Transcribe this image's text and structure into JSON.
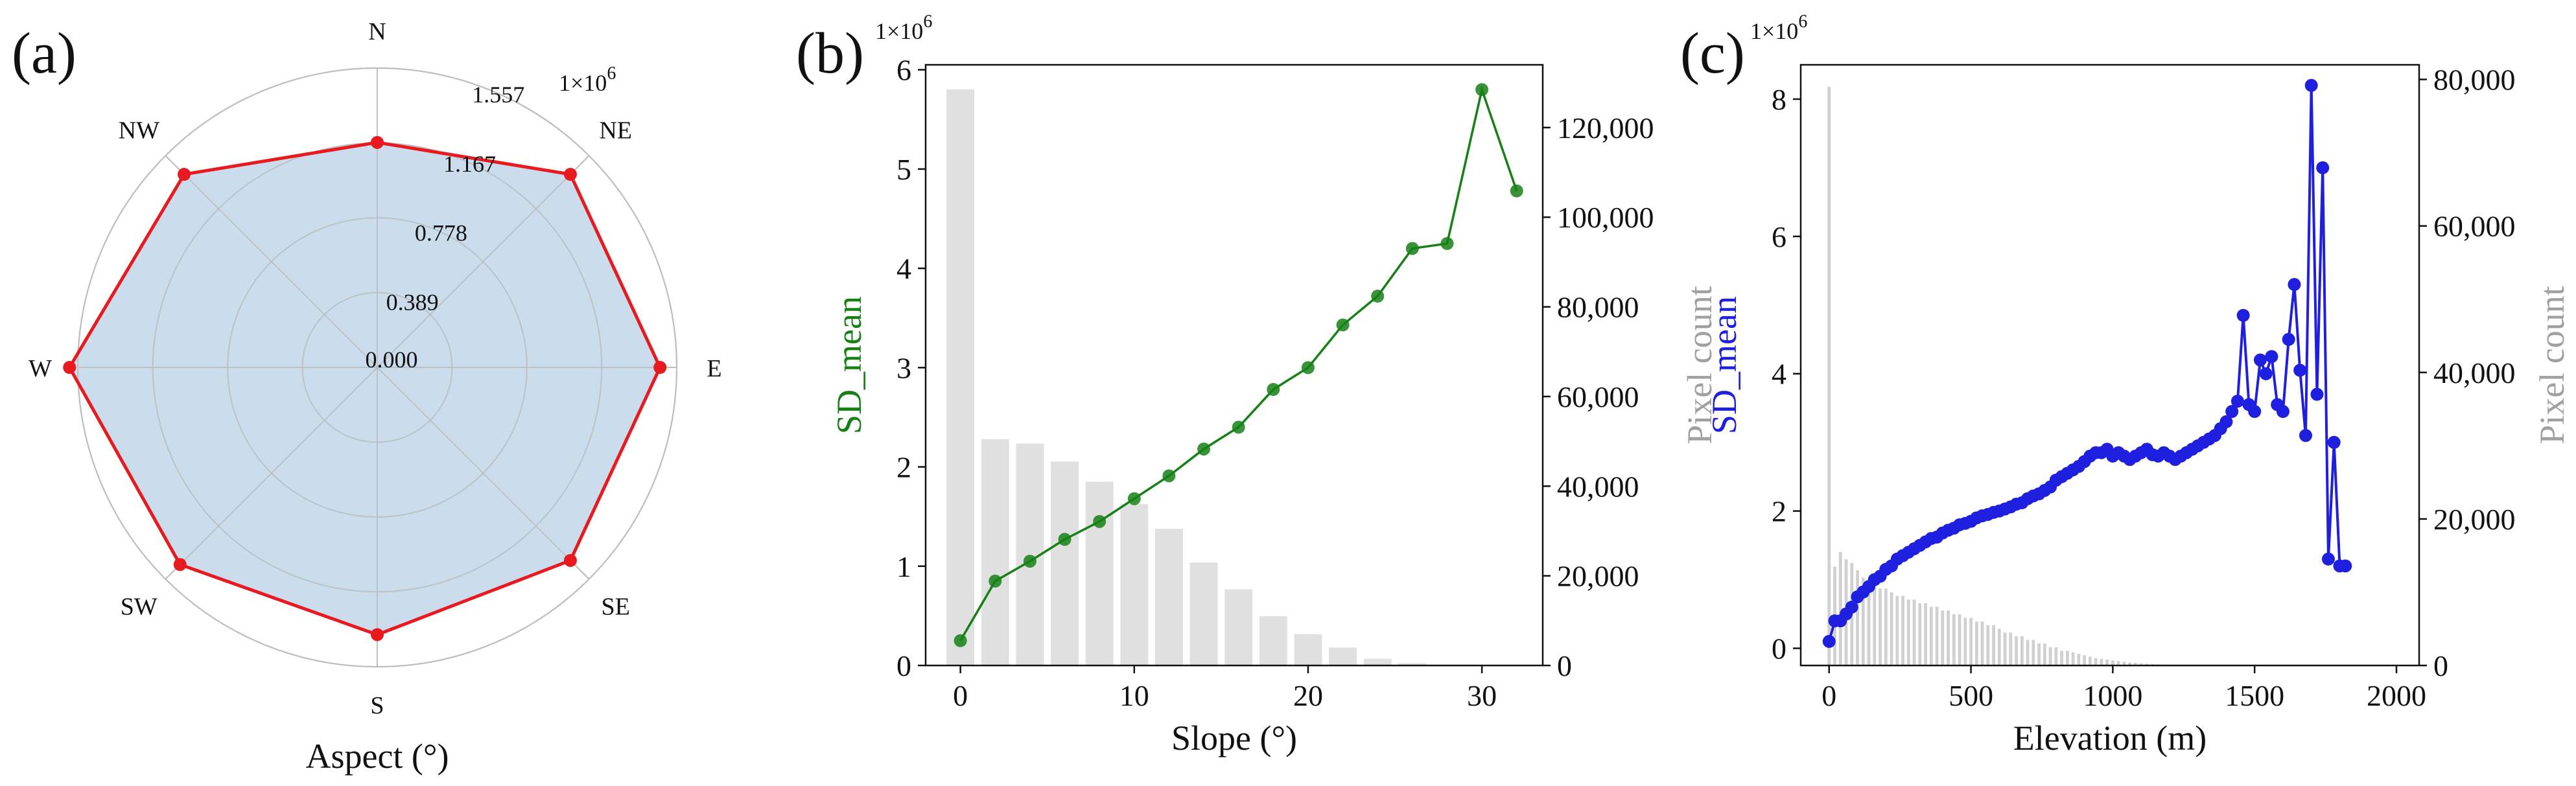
{
  "panels": {
    "a_label": "(a)",
    "b_label": "(b)",
    "c_label": "(c)"
  },
  "chart_data": [
    {
      "type": "radar",
      "panel": "(a)",
      "xlabel": "Aspect (°)",
      "offset_label": "1×10^6",
      "categories": [
        "N",
        "NE",
        "E",
        "SE",
        "S",
        "SW",
        "W",
        "NW"
      ],
      "radial_ticks": [
        "0.000",
        "0.389",
        "0.778",
        "1.167",
        "1.557"
      ],
      "rlim": [
        0,
        1.557
      ],
      "values": [
        1.17,
        1.42,
        1.47,
        1.42,
        1.39,
        1.45,
        1.6,
        1.42
      ],
      "line_color": "#e8191f",
      "fill_color": "#c5d9ea",
      "grid": true
    },
    {
      "type": "bar+line",
      "panel": "(b)",
      "xlabel": "Slope (°)",
      "ylabel": "SD_mean",
      "y2label": "Pixel count",
      "offset_label": "1×10^6",
      "xlim": [
        -2,
        33.5
      ],
      "ylim": [
        0,
        6.05
      ],
      "y2lim": [
        0,
        134000
      ],
      "xticks": [
        0,
        10,
        20,
        30
      ],
      "yticks": [
        0,
        1,
        2,
        3,
        4,
        5,
        6
      ],
      "y2ticks": [
        "0",
        "20,000",
        "40,000",
        "60,000",
        "80,000",
        "100,000",
        "120,000"
      ],
      "y2tick_values": [
        0,
        20000,
        40000,
        60000,
        80000,
        100000,
        120000
      ],
      "line": {
        "name": "SD_mean",
        "color": "#168016",
        "x": [
          0,
          2,
          4,
          6,
          8,
          10,
          12,
          14,
          16,
          18,
          20,
          22,
          24,
          26,
          28,
          30,
          32
        ],
        "y": [
          0.25,
          0.85,
          1.05,
          1.27,
          1.45,
          1.68,
          1.91,
          2.18,
          2.4,
          2.78,
          3.0,
          3.43,
          3.72,
          4.2,
          4.25,
          5.8,
          4.78
        ]
      },
      "bars": {
        "name": "Pixel count",
        "color": "#e0e0e0",
        "x": [
          0,
          2,
          4,
          6,
          8,
          10,
          12,
          14,
          16,
          18,
          20,
          22,
          24,
          26,
          28
        ],
        "values": [
          128500,
          50500,
          49500,
          45500,
          41000,
          36000,
          30500,
          23000,
          17000,
          11000,
          7000,
          4000,
          1500,
          500,
          100
        ]
      },
      "axis_color": "#168016",
      "y2_color": "#a0a0a0"
    },
    {
      "type": "bar+line",
      "panel": "(c)",
      "xlabel": "Elevation (m)",
      "ylabel": "SD_mean",
      "y2label": "Pixel count",
      "offset_label": "1×10^6",
      "xlim": [
        -100,
        2080
      ],
      "ylim": [
        -0.25,
        8.5
      ],
      "y2lim": [
        0,
        82000
      ],
      "xticks": [
        0,
        500,
        1000,
        1500,
        2000
      ],
      "yticks": [
        0,
        2,
        4,
        6,
        8
      ],
      "y2ticks": [
        "0",
        "20,000",
        "40,000",
        "60,000",
        "80,000"
      ],
      "y2tick_values": [
        0,
        20000,
        40000,
        60000,
        80000
      ],
      "line": {
        "name": "SD_mean",
        "color": "#1f1fe0",
        "x": [
          0,
          20,
          40,
          60,
          80,
          100,
          120,
          140,
          160,
          180,
          200,
          220,
          240,
          260,
          280,
          300,
          320,
          340,
          360,
          380,
          400,
          420,
          440,
          460,
          480,
          500,
          520,
          540,
          560,
          580,
          600,
          620,
          640,
          660,
          680,
          700,
          720,
          740,
          760,
          780,
          800,
          820,
          840,
          860,
          880,
          900,
          920,
          940,
          960,
          980,
          1000,
          1020,
          1040,
          1060,
          1080,
          1100,
          1120,
          1140,
          1160,
          1180,
          1200,
          1220,
          1240,
          1260,
          1280,
          1300,
          1320,
          1340,
          1360,
          1380,
          1400,
          1420,
          1440,
          1460,
          1480,
          1500,
          1520,
          1540,
          1560,
          1580,
          1600,
          1620,
          1640,
          1660,
          1680,
          1700,
          1720,
          1740,
          1760,
          1780,
          1800,
          1820
        ],
        "y": [
          0.1,
          0.4,
          0.4,
          0.5,
          0.6,
          0.75,
          0.82,
          0.9,
          1.0,
          1.05,
          1.15,
          1.2,
          1.3,
          1.35,
          1.4,
          1.45,
          1.5,
          1.55,
          1.6,
          1.62,
          1.68,
          1.72,
          1.75,
          1.8,
          1.82,
          1.85,
          1.9,
          1.93,
          1.95,
          1.98,
          2.0,
          2.03,
          2.06,
          2.1,
          2.12,
          2.18,
          2.22,
          2.25,
          2.3,
          2.35,
          2.45,
          2.5,
          2.55,
          2.6,
          2.65,
          2.72,
          2.8,
          2.85,
          2.85,
          2.9,
          2.8,
          2.85,
          2.8,
          2.75,
          2.8,
          2.85,
          2.9,
          2.82,
          2.8,
          2.85,
          2.8,
          2.75,
          2.8,
          2.85,
          2.9,
          2.95,
          3.0,
          3.05,
          3.1,
          3.2,
          3.3,
          3.45,
          3.6,
          4.85,
          3.55,
          3.45,
          4.2,
          4.0,
          4.25,
          3.55,
          3.45,
          4.5,
          5.3,
          4.05,
          3.1,
          8.2,
          3.7,
          7.0,
          1.3,
          3.0,
          1.2,
          1.2
        ],
        "note_markers": true
      },
      "bars": {
        "name": "Pixel count",
        "color": "#d0d0d0",
        "bin_width": 20,
        "x": [
          0,
          20,
          40,
          60,
          80,
          100,
          120,
          140,
          160,
          180,
          200,
          220,
          240,
          260,
          280,
          300,
          320,
          340,
          360,
          380,
          400,
          420,
          440,
          460,
          480,
          500,
          520,
          540,
          560,
          580,
          600,
          620,
          640,
          660,
          680,
          700,
          720,
          740,
          760,
          780,
          800,
          820,
          840,
          860,
          880,
          900,
          920,
          940,
          960,
          980,
          1000,
          1020,
          1040,
          1060,
          1080,
          1100,
          1120,
          1140,
          1160,
          1180,
          1200,
          1220,
          1240,
          1260,
          1280,
          1300
        ],
        "values": [
          79000,
          13500,
          15500,
          14500,
          14000,
          13000,
          12000,
          11500,
          11000,
          10500,
          10500,
          10000,
          9500,
          9500,
          9000,
          9000,
          8500,
          8500,
          8000,
          8000,
          7500,
          7500,
          7000,
          7000,
          6500,
          6500,
          6000,
          6000,
          5500,
          5500,
          5000,
          4500,
          4500,
          4000,
          4000,
          3500,
          3500,
          3000,
          3000,
          2500,
          2500,
          2000,
          2000,
          1800,
          1600,
          1400,
          1200,
          1000,
          900,
          800,
          700,
          600,
          500,
          400,
          350,
          300,
          250,
          200,
          150,
          120,
          100,
          80,
          60,
          40,
          30,
          20
        ]
      },
      "axis_color": "#1f1fe0",
      "y2_color": "#a0a0a0"
    }
  ]
}
